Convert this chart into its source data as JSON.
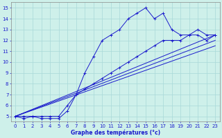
{
  "title": "Graphe des températures (°c)",
  "bg_color": "#cef0ea",
  "grid_color": "#a8d8d8",
  "line_color": "#1a1acc",
  "xlim": [
    -0.5,
    23.5
  ],
  "ylim": [
    4.5,
    15.5
  ],
  "xticks": [
    0,
    1,
    2,
    3,
    4,
    5,
    6,
    7,
    8,
    9,
    10,
    11,
    12,
    13,
    14,
    15,
    16,
    17,
    18,
    19,
    20,
    21,
    22,
    23
  ],
  "yticks": [
    5,
    6,
    7,
    8,
    9,
    10,
    11,
    12,
    13,
    14,
    15
  ],
  "series": [
    {
      "x": [
        0,
        1,
        2,
        3,
        4,
        5,
        6,
        7,
        8,
        9,
        10,
        11,
        12,
        13,
        14,
        15,
        16,
        17,
        18,
        19,
        20,
        21,
        22,
        23
      ],
      "y": [
        5,
        5,
        5,
        5,
        5,
        5,
        6,
        7,
        9,
        10.5,
        12,
        12.5,
        13,
        14,
        14.5,
        15,
        14,
        14.5,
        13,
        12.5,
        12.5,
        13,
        12.5,
        12.5
      ],
      "markers": true
    },
    {
      "x": [
        0,
        1,
        2,
        3,
        4,
        5,
        6,
        7,
        8,
        9,
        10,
        11,
        12,
        13,
        14,
        15,
        16,
        17,
        18,
        19,
        20,
        21,
        22,
        23
      ],
      "y": [
        5,
        4.8,
        5,
        4.8,
        4.8,
        4.8,
        5.5,
        7,
        7.5,
        8,
        8.5,
        9,
        9.5,
        10,
        10.5,
        11,
        11.5,
        12,
        12,
        12,
        12.5,
        12.5,
        12,
        12.5
      ],
      "markers": true
    },
    {
      "x": [
        0,
        23
      ],
      "y": [
        5,
        12.5
      ],
      "markers": false
    },
    {
      "x": [
        0,
        23
      ],
      "y": [
        5,
        12.0
      ],
      "markers": false
    },
    {
      "x": [
        0,
        23
      ],
      "y": [
        5,
        11.5
      ],
      "markers": false
    }
  ]
}
